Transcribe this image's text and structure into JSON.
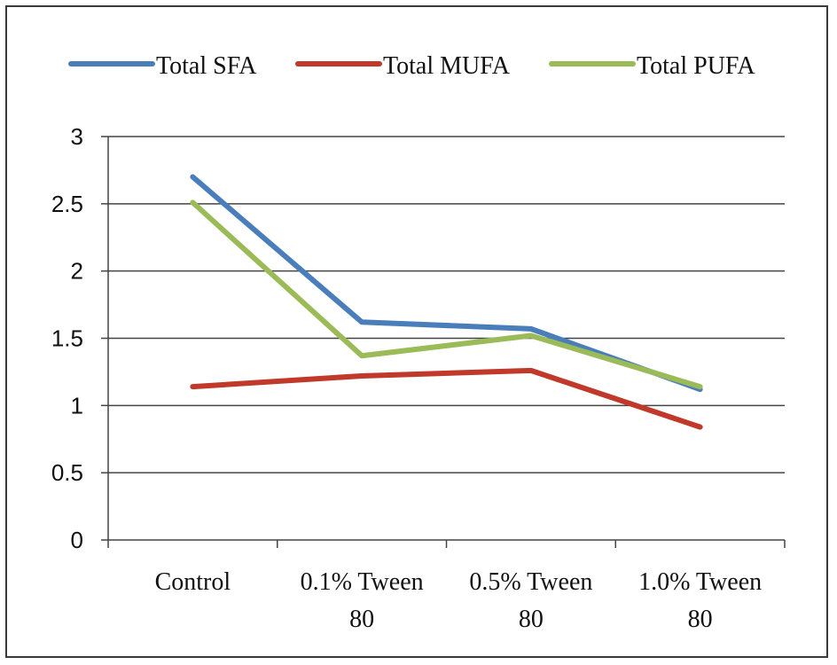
{
  "chart_data": {
    "type": "line",
    "title": "",
    "xlabel": "",
    "ylabel": "",
    "categories": [
      [
        "Control"
      ],
      [
        "0.1% Tween",
        "80"
      ],
      [
        "0.5% Tween",
        "80"
      ],
      [
        "1.0% Tween",
        "80"
      ]
    ],
    "ylim": [
      0,
      3
    ],
    "yticks": [
      0,
      0.5,
      1,
      1.5,
      2,
      2.5,
      3
    ],
    "ytick_labels": [
      "0",
      "0.5",
      "1",
      "1.5",
      "2",
      "2.5",
      "3"
    ],
    "grid": true,
    "legend_position": "top",
    "series": [
      {
        "name": "Total SFA",
        "color": "#4a7ebb",
        "values": [
          2.7,
          1.62,
          1.57,
          1.12
        ]
      },
      {
        "name": "Total MUFA",
        "color": "#c0392b",
        "values": [
          1.14,
          1.22,
          1.26,
          0.84
        ]
      },
      {
        "name": "Total PUFA",
        "color": "#9bbb59",
        "values": [
          2.51,
          1.37,
          1.52,
          1.14
        ]
      }
    ]
  }
}
